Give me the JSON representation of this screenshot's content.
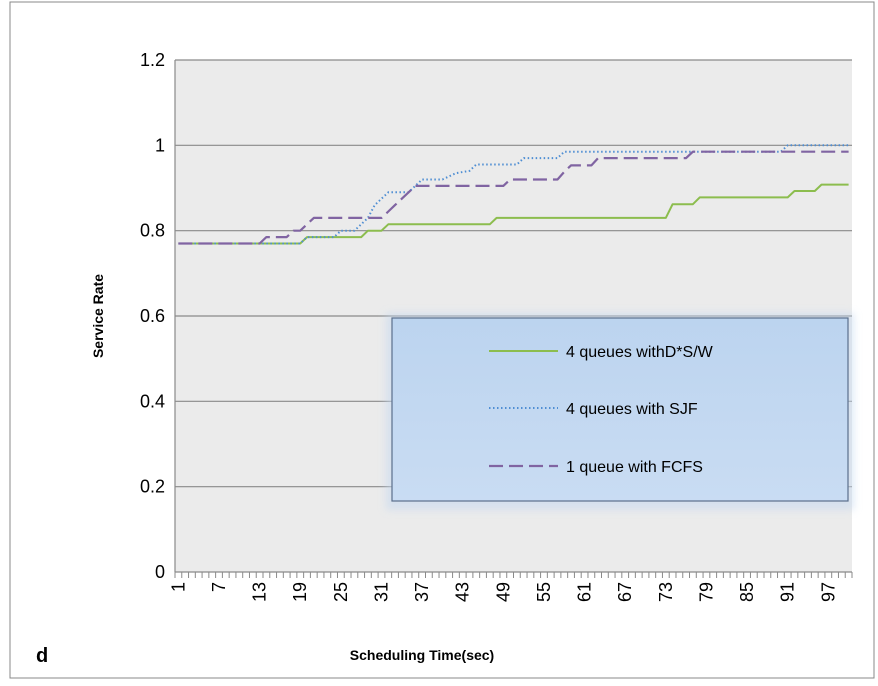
{
  "panel_label": "d",
  "chart_data": {
    "type": "line",
    "title": "",
    "xlabel": "Scheduling Time(sec)",
    "ylabel": "Service Rate",
    "xlim": [
      1,
      100
    ],
    "ylim": [
      0,
      1.2
    ],
    "y_ticks": [
      "0",
      "0.2",
      "0.4",
      "0.6",
      "0.8",
      "1",
      "1.2"
    ],
    "x_tick_labels": [
      "1",
      "7",
      "13",
      "19",
      "25",
      "31",
      "37",
      "43",
      "49",
      "55",
      "61",
      "67",
      "73",
      "79",
      "85",
      "91",
      "97"
    ],
    "grid": "horizontal",
    "legend_position": "center-right",
    "plot_background": "#ebebeb",
    "series": [
      {
        "name": "4 queues withD*S/W",
        "color": "#8cbd4e",
        "style": "solid",
        "points": [
          [
            1,
            0.77
          ],
          [
            19,
            0.77
          ],
          [
            20,
            0.785
          ],
          [
            28,
            0.785
          ],
          [
            29,
            0.8
          ],
          [
            31,
            0.8
          ],
          [
            32,
            0.815
          ],
          [
            47,
            0.815
          ],
          [
            48,
            0.83
          ],
          [
            73,
            0.83
          ],
          [
            74,
            0.862
          ],
          [
            77,
            0.862
          ],
          [
            78,
            0.878
          ],
          [
            91,
            0.878
          ],
          [
            92,
            0.893
          ],
          [
            95,
            0.893
          ],
          [
            96,
            0.908
          ],
          [
            100,
            0.908
          ]
        ]
      },
      {
        "name": "4 queues with SJF",
        "color": "#4f8ed3",
        "style": "dotted",
        "points": [
          [
            1,
            0.77
          ],
          [
            19,
            0.77
          ],
          [
            20,
            0.785
          ],
          [
            24,
            0.785
          ],
          [
            25,
            0.8
          ],
          [
            27,
            0.8
          ],
          [
            28,
            0.815
          ],
          [
            29,
            0.83
          ],
          [
            30,
            0.86
          ],
          [
            31,
            0.875
          ],
          [
            32,
            0.89
          ],
          [
            35,
            0.89
          ],
          [
            36,
            0.905
          ],
          [
            37,
            0.92
          ],
          [
            40,
            0.92
          ],
          [
            42,
            0.935
          ],
          [
            44,
            0.94
          ],
          [
            45,
            0.955
          ],
          [
            51,
            0.955
          ],
          [
            52,
            0.97
          ],
          [
            57,
            0.97
          ],
          [
            58,
            0.985
          ],
          [
            90,
            0.985
          ],
          [
            91,
            1.0
          ],
          [
            100,
            1.0
          ]
        ]
      },
      {
        "name": "1 queue with FCFS",
        "color": "#8064a2",
        "style": "dashed",
        "points": [
          [
            1,
            0.77
          ],
          [
            13,
            0.77
          ],
          [
            14,
            0.785
          ],
          [
            17,
            0.785
          ],
          [
            18,
            0.8
          ],
          [
            19,
            0.8
          ],
          [
            21,
            0.83
          ],
          [
            31,
            0.83
          ],
          [
            32,
            0.845
          ],
          [
            33,
            0.86
          ],
          [
            34,
            0.875
          ],
          [
            35,
            0.89
          ],
          [
            36,
            0.905
          ],
          [
            49,
            0.905
          ],
          [
            50,
            0.92
          ],
          [
            57,
            0.92
          ],
          [
            58,
            0.938
          ],
          [
            59,
            0.953
          ],
          [
            62,
            0.953
          ],
          [
            63,
            0.97
          ],
          [
            76,
            0.97
          ],
          [
            77,
            0.985
          ],
          [
            100,
            0.985
          ]
        ]
      }
    ]
  }
}
